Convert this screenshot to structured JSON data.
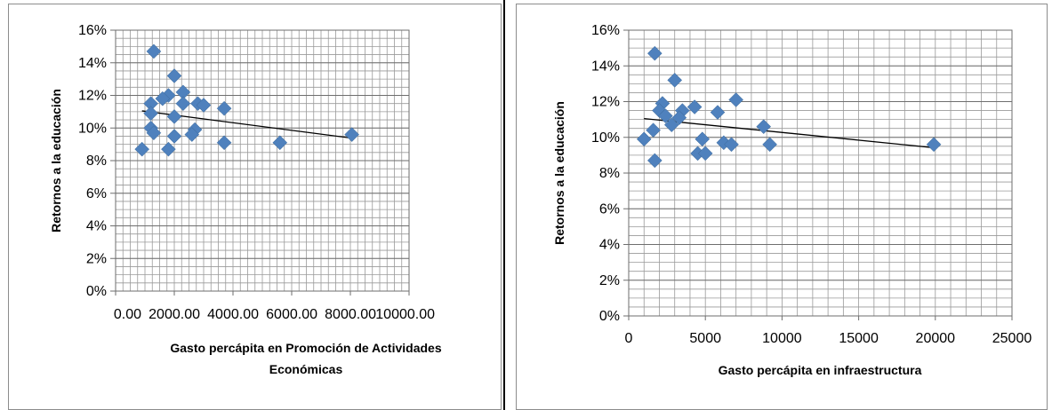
{
  "chart_data": [
    {
      "type": "scatter",
      "title": "",
      "xlabel": [
        "Gasto percápita en Promoción de Actividades",
        "Económicas"
      ],
      "ylabel": "Retornos a la educación",
      "xlim": [
        0,
        10000
      ],
      "ylim": [
        0,
        0.16
      ],
      "x_ticks": [
        "0.00",
        "2000.00",
        "4000.00",
        "6000.00",
        "8000.00",
        "10000.00"
      ],
      "y_ticks": [
        "0%",
        "2%",
        "4%",
        "6%",
        "8%",
        "10%",
        "12%",
        "14%",
        "16%"
      ],
      "grid": true,
      "legend": "none",
      "marker_color": "#4f81bd",
      "trendline": {
        "x": [
          900,
          8050
        ],
        "y": [
          0.1105,
          0.0938
        ]
      },
      "points": [
        {
          "x": 1300,
          "y": 0.147
        },
        {
          "x": 2000,
          "y": 0.132
        },
        {
          "x": 2300,
          "y": 0.122
        },
        {
          "x": 1800,
          "y": 0.12
        },
        {
          "x": 1600,
          "y": 0.118
        },
        {
          "x": 1200,
          "y": 0.115
        },
        {
          "x": 2300,
          "y": 0.115
        },
        {
          "x": 2800,
          "y": 0.115
        },
        {
          "x": 3000,
          "y": 0.114
        },
        {
          "x": 3700,
          "y": 0.112
        },
        {
          "x": 1200,
          "y": 0.109
        },
        {
          "x": 2000,
          "y": 0.107
        },
        {
          "x": 1200,
          "y": 0.1
        },
        {
          "x": 2700,
          "y": 0.099
        },
        {
          "x": 1300,
          "y": 0.097
        },
        {
          "x": 2600,
          "y": 0.096
        },
        {
          "x": 2000,
          "y": 0.095
        },
        {
          "x": 3700,
          "y": 0.091
        },
        {
          "x": 5600,
          "y": 0.091
        },
        {
          "x": 900,
          "y": 0.087
        },
        {
          "x": 1800,
          "y": 0.087
        },
        {
          "x": 8050,
          "y": 0.096
        }
      ]
    },
    {
      "type": "scatter",
      "title": "",
      "xlabel": [
        "Gasto percápita en infraestructura"
      ],
      "ylabel": "Retornos a la educación",
      "xlim": [
        0,
        25000
      ],
      "ylim": [
        0,
        0.16
      ],
      "x_ticks": [
        "0",
        "5000",
        "10000",
        "15000",
        "20000",
        "25000"
      ],
      "y_ticks": [
        "0%",
        "2%",
        "4%",
        "6%",
        "8%",
        "10%",
        "12%",
        "14%",
        "16%"
      ],
      "grid": true,
      "legend": "none",
      "marker_color": "#4f81bd",
      "trendline": {
        "x": [
          1000,
          19900
        ],
        "y": [
          0.1105,
          0.0942
        ]
      },
      "points": [
        {
          "x": 1700,
          "y": 0.147
        },
        {
          "x": 3000,
          "y": 0.132
        },
        {
          "x": 7000,
          "y": 0.121
        },
        {
          "x": 2200,
          "y": 0.119
        },
        {
          "x": 4300,
          "y": 0.117
        },
        {
          "x": 2000,
          "y": 0.115
        },
        {
          "x": 3500,
          "y": 0.115
        },
        {
          "x": 5800,
          "y": 0.114
        },
        {
          "x": 2400,
          "y": 0.112
        },
        {
          "x": 3300,
          "y": 0.111
        },
        {
          "x": 2800,
          "y": 0.107
        },
        {
          "x": 8800,
          "y": 0.106
        },
        {
          "x": 1600,
          "y": 0.104
        },
        {
          "x": 1000,
          "y": 0.099
        },
        {
          "x": 4800,
          "y": 0.099
        },
        {
          "x": 6200,
          "y": 0.097
        },
        {
          "x": 6700,
          "y": 0.096
        },
        {
          "x": 9200,
          "y": 0.096
        },
        {
          "x": 4500,
          "y": 0.091
        },
        {
          "x": 5000,
          "y": 0.091
        },
        {
          "x": 1700,
          "y": 0.087
        },
        {
          "x": 19900,
          "y": 0.096
        }
      ]
    }
  ]
}
